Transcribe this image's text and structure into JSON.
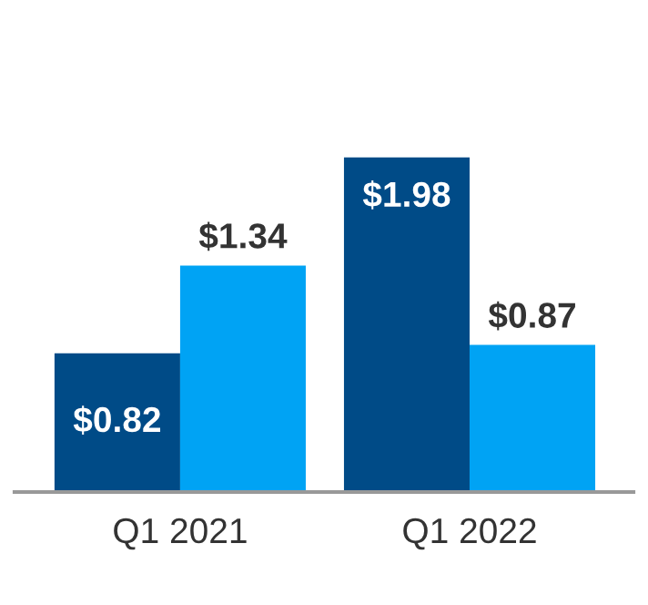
{
  "chart_data": {
    "type": "bar",
    "categories": [
      "Q1 2021",
      "Q1 2022"
    ],
    "series": [
      {
        "color": "#004b87",
        "values": [
          0.82,
          1.98
        ],
        "value_labels": [
          "$0.82",
          "$1.98"
        ]
      },
      {
        "color": "#00a3f4",
        "values": [
          1.34,
          0.87
        ],
        "value_labels": [
          "$1.34",
          "$0.87"
        ]
      }
    ],
    "grid": false,
    "legend": false,
    "tick_labels": "x"
  }
}
